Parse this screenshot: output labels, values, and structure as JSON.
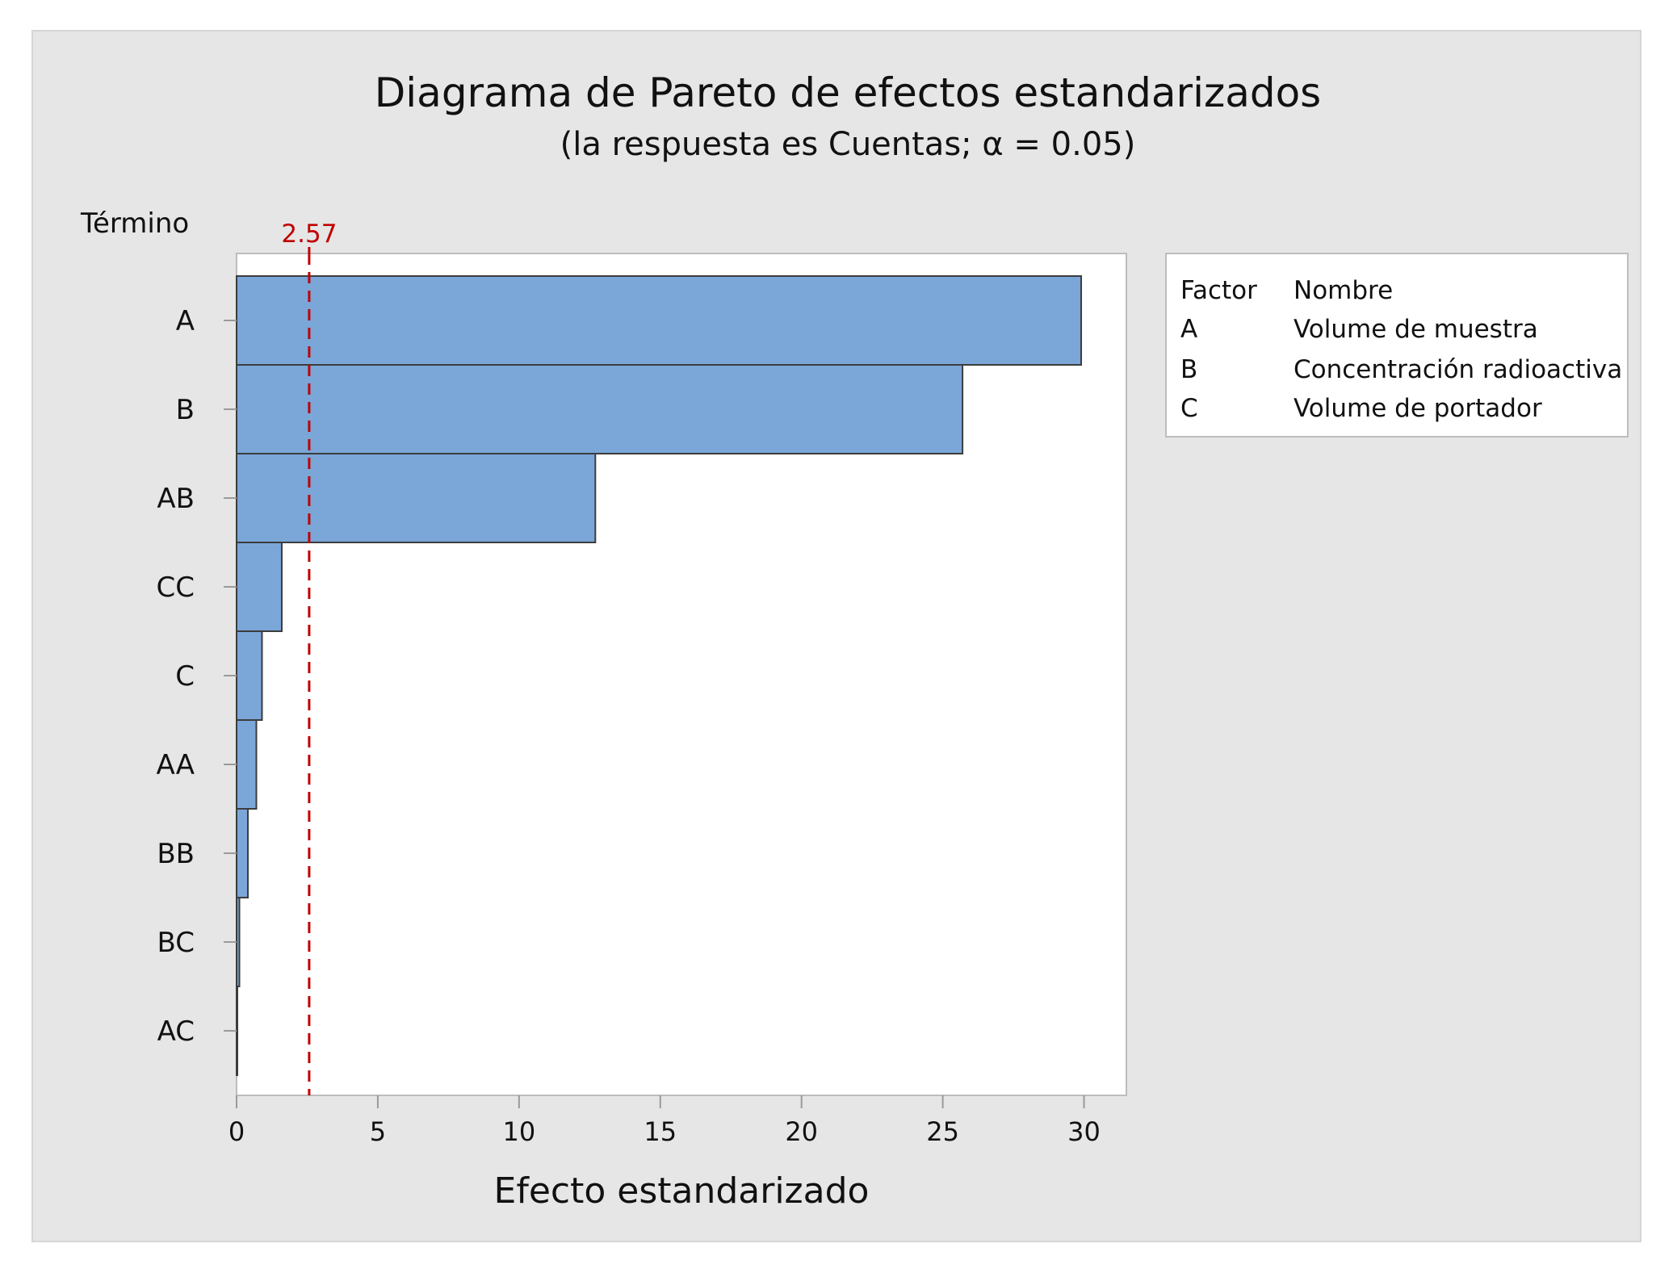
{
  "chart_data": {
    "type": "bar",
    "orientation": "horizontal",
    "title": "Diagrama de Pareto de efectos estandarizados",
    "subtitle": "(la respuesta es Cuentas; α = 0.05)",
    "xlabel": "Efecto estandarizado",
    "ylabel": "Término",
    "categories": [
      "A",
      "B",
      "AB",
      "CC",
      "C",
      "AA",
      "BB",
      "BC",
      "AC"
    ],
    "values": [
      29.9,
      25.7,
      12.7,
      1.6,
      0.9,
      0.7,
      0.4,
      0.1,
      0.02
    ],
    "xlim": [
      0,
      31.5
    ],
    "xticks": [
      0,
      5,
      10,
      15,
      20,
      25,
      30
    ],
    "reference_line": {
      "value": 2.57,
      "label": "2.57",
      "color": "#c00000"
    },
    "bar_color": "#7ba6d8",
    "bar_edge_color": "#3c3c3c",
    "background_color": "#e6e6e6",
    "plot_background_color": "#ffffff",
    "grid": false,
    "legend": {
      "placement": "right",
      "header": [
        "Factor",
        "Nombre"
      ],
      "rows": [
        {
          "factor": "A",
          "name": "Volume de muestra"
        },
        {
          "factor": "B",
          "name": "Concentración radioactiva"
        },
        {
          "factor": "C",
          "name": "Volume de portador"
        }
      ]
    }
  }
}
